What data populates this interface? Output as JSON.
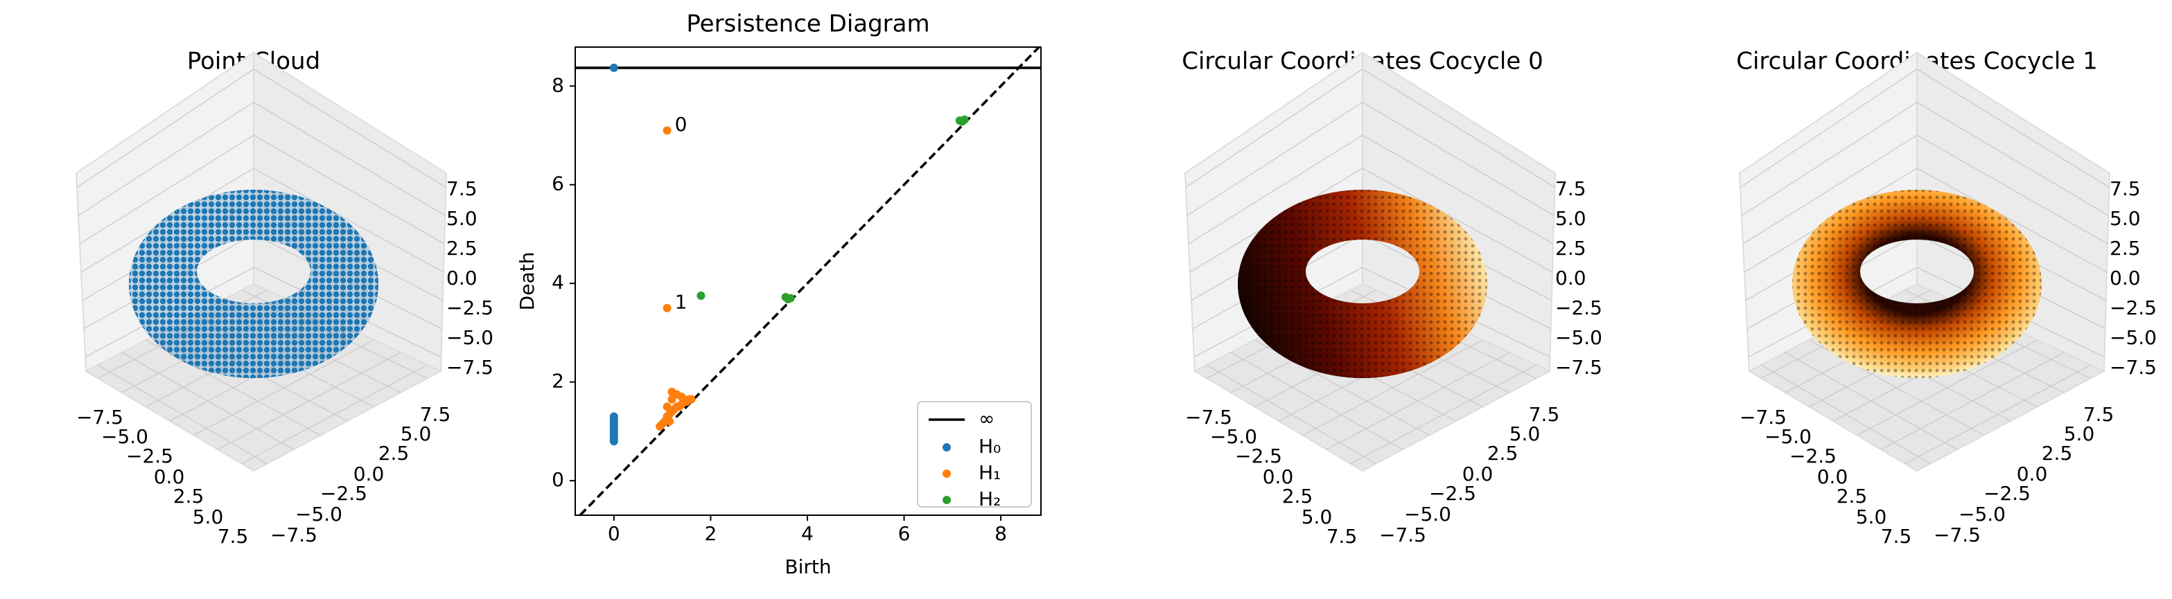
{
  "chart_data": [
    {
      "type": "scatter3d",
      "title": "Point Cloud",
      "color": "#1f77b4",
      "xticks": [
        {
          "value": -7.5,
          "label": "−7.5"
        },
        {
          "value": -5,
          "label": "−5.0"
        },
        {
          "value": -2.5,
          "label": "−2.5"
        },
        {
          "value": 0,
          "label": "0.0"
        },
        {
          "value": 2.5,
          "label": "2.5"
        },
        {
          "value": 5,
          "label": "5.0"
        },
        {
          "value": 7.5,
          "label": "7.5"
        }
      ],
      "yticks": [
        {
          "value": -7.5,
          "label": "−7.5"
        },
        {
          "value": -5,
          "label": "−5.0"
        },
        {
          "value": -2.5,
          "label": "−2.5"
        },
        {
          "value": 0,
          "label": "0.0"
        },
        {
          "value": 2.5,
          "label": "2.5"
        },
        {
          "value": 5,
          "label": "5.0"
        },
        {
          "value": 7.5,
          "label": "7.5"
        }
      ],
      "zticks": [
        {
          "value": -7.5,
          "label": "−7.5"
        },
        {
          "value": -5,
          "label": "−5.0"
        },
        {
          "value": -2.5,
          "label": "−2.5"
        },
        {
          "value": 0,
          "label": "0.0"
        },
        {
          "value": 2.5,
          "label": "2.5"
        },
        {
          "value": 5,
          "label": "5.0"
        },
        {
          "value": 7.5,
          "label": "7.5"
        }
      ]
    },
    {
      "type": "persistence",
      "title": "Persistence Diagram",
      "xlabel": "Birth",
      "ylabel": "Death",
      "xlim": [
        -0.8,
        8.83
      ],
      "ylim": [
        -0.7,
        8.79
      ],
      "xticks": [
        0,
        2,
        4,
        6,
        8
      ],
      "yticks": [
        0,
        2,
        4,
        6,
        8
      ],
      "infinity": {
        "name": "∞",
        "value": 8.37,
        "color": "#000000"
      },
      "legend": "lower right",
      "series": [
        {
          "name": "H₀",
          "color": "#1f77b4",
          "x": [
            0,
            0,
            0,
            0,
            0,
            0,
            0,
            0,
            0,
            0,
            0,
            0
          ],
          "y": [
            8.37,
            0.8,
            0.85,
            0.9,
            0.95,
            1.0,
            1.05,
            1.1,
            1.15,
            1.2,
            1.25,
            1.3
          ]
        },
        {
          "name": "H₁",
          "color": "#ff7f0e",
          "x": [
            1.1,
            1.1,
            0.95,
            1.0,
            1.05,
            1.1,
            1.15,
            1.2,
            1.25,
            1.3,
            1.35,
            1.4,
            1.45,
            1.5,
            1.55,
            1.6,
            1.1,
            1.2,
            1.3,
            1.4,
            1.2,
            1.15
          ],
          "y": [
            7.1,
            3.5,
            1.1,
            1.15,
            1.2,
            1.3,
            1.35,
            1.4,
            1.45,
            1.5,
            1.5,
            1.55,
            1.6,
            1.6,
            1.65,
            1.65,
            1.5,
            1.65,
            1.75,
            1.7,
            1.8,
            1.2
          ]
        },
        {
          "name": "H₂",
          "color": "#2ca02c",
          "x": [
            1.8,
            3.55,
            3.6,
            3.65,
            7.15,
            7.2,
            7.25
          ],
          "y": [
            3.75,
            3.72,
            3.68,
            3.7,
            7.3,
            7.28,
            7.32
          ]
        }
      ],
      "annotations": [
        {
          "text": "0",
          "x": 1.2,
          "y": 7.15
        },
        {
          "text": "1",
          "x": 1.2,
          "y": 3.55
        }
      ]
    },
    {
      "type": "scatter3d",
      "title": "Circular Coordinates Cocycle 0",
      "colormap": "afmhot",
      "xticks": [
        {
          "value": -7.5,
          "label": "−7.5"
        },
        {
          "value": -5,
          "label": "−5.0"
        },
        {
          "value": -2.5,
          "label": "−2.5"
        },
        {
          "value": 0,
          "label": "0.0"
        },
        {
          "value": 2.5,
          "label": "2.5"
        },
        {
          "value": 5,
          "label": "5.0"
        },
        {
          "value": 7.5,
          "label": "7.5"
        }
      ],
      "yticks": [
        {
          "value": -7.5,
          "label": "−7.5"
        },
        {
          "value": -5,
          "label": "−5.0"
        },
        {
          "value": -2.5,
          "label": "−2.5"
        },
        {
          "value": 0,
          "label": "0.0"
        },
        {
          "value": 2.5,
          "label": "2.5"
        },
        {
          "value": 5,
          "label": "5.0"
        },
        {
          "value": 7.5,
          "label": "7.5"
        }
      ],
      "zticks": [
        {
          "value": -7.5,
          "label": "−7.5"
        },
        {
          "value": -5,
          "label": "−5.0"
        },
        {
          "value": -2.5,
          "label": "−2.5"
        },
        {
          "value": 0,
          "label": "0.0"
        },
        {
          "value": 2.5,
          "label": "2.5"
        },
        {
          "value": 5,
          "label": "5.0"
        },
        {
          "value": 7.5,
          "label": "7.5"
        }
      ]
    },
    {
      "type": "scatter3d",
      "title": "Circular Coordinates Cocycle 1",
      "colormap": "afmhot-radial",
      "xticks": [
        {
          "value": -7.5,
          "label": "−7.5"
        },
        {
          "value": -5,
          "label": "−5.0"
        },
        {
          "value": -2.5,
          "label": "−2.5"
        },
        {
          "value": 0,
          "label": "0.0"
        },
        {
          "value": 2.5,
          "label": "2.5"
        },
        {
          "value": 5,
          "label": "5.0"
        },
        {
          "value": 7.5,
          "label": "7.5"
        }
      ],
      "yticks": [
        {
          "value": -7.5,
          "label": "−7.5"
        },
        {
          "value": -5,
          "label": "−5.0"
        },
        {
          "value": -2.5,
          "label": "−2.5"
        },
        {
          "value": 0,
          "label": "0.0"
        },
        {
          "value": 2.5,
          "label": "2.5"
        },
        {
          "value": 5,
          "label": "5.0"
        },
        {
          "value": 7.5,
          "label": "7.5"
        }
      ],
      "zticks": [
        {
          "value": -7.5,
          "label": "−7.5"
        },
        {
          "value": -5,
          "label": "−5.0"
        },
        {
          "value": -2.5,
          "label": "−2.5"
        },
        {
          "value": 0,
          "label": "0.0"
        },
        {
          "value": 2.5,
          "label": "2.5"
        },
        {
          "value": 5,
          "label": "5.0"
        },
        {
          "value": 7.5,
          "label": "7.5"
        }
      ]
    }
  ]
}
